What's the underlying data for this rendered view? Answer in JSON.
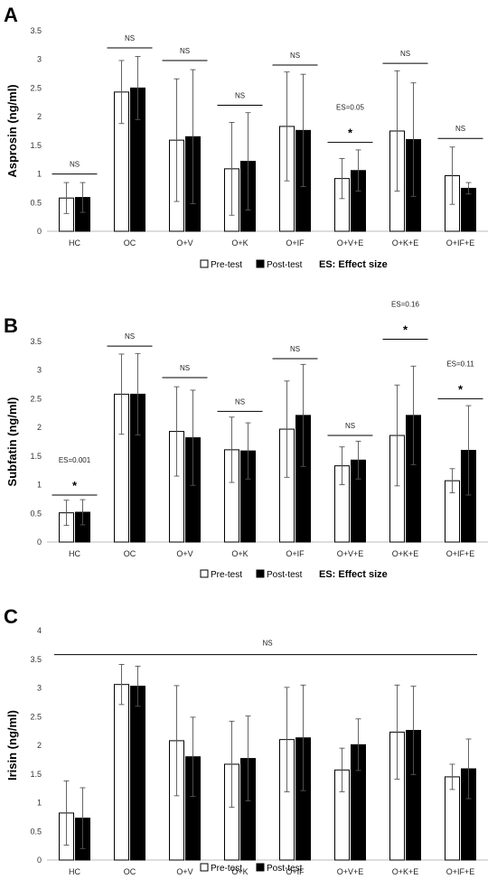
{
  "chart_data": [
    {
      "type": "bar",
      "panel": "A",
      "ylabel": "Asprosin (ng/ml)",
      "ylim": [
        0,
        3.5
      ],
      "yticks": [
        "0",
        "0.5",
        "1",
        "1.5",
        "2",
        "2.5",
        "3",
        "3.5"
      ],
      "categories": [
        "HC",
        "OC",
        "O+V",
        "O+K",
        "O+IF",
        "O+V+E",
        "O+K+E",
        "O+IF+E"
      ],
      "series": [
        {
          "name": "Pre-test",
          "color": "#ffffff",
          "values": [
            0.58,
            2.43,
            1.59,
            1.09,
            1.83,
            0.92,
            1.75,
            0.97
          ],
          "errors": [
            0.27,
            0.55,
            1.07,
            0.81,
            0.95,
            0.35,
            1.05,
            0.5
          ]
        },
        {
          "name": "Post-test",
          "color": "#000000",
          "values": [
            0.59,
            2.5,
            1.65,
            1.22,
            1.76,
            1.06,
            1.6,
            0.75
          ],
          "errors": [
            0.26,
            0.55,
            1.17,
            0.85,
            0.98,
            0.36,
            0.99,
            0.1
          ]
        }
      ],
      "significance": [
        {
          "label": "NS",
          "star": "",
          "es": "",
          "y": 1.0
        },
        {
          "label": "NS",
          "star": "",
          "es": "",
          "y": 3.2
        },
        {
          "label": "NS",
          "star": "",
          "es": "",
          "y": 2.98
        },
        {
          "label": "NS",
          "star": "",
          "es": "",
          "y": 2.2
        },
        {
          "label": "NS",
          "star": "",
          "es": "",
          "y": 2.9
        },
        {
          "label": "",
          "star": "*",
          "es": "ES=0.05",
          "y": 1.55
        },
        {
          "label": "NS",
          "star": "",
          "es": "",
          "y": 2.93
        },
        {
          "label": "NS",
          "star": "",
          "es": "",
          "y": 1.62
        }
      ],
      "legend": {
        "pre": "Pre-test",
        "post": "Post-test",
        "note": "ES: Effect size"
      }
    },
    {
      "type": "bar",
      "panel": "B",
      "ylabel": "Subfatin (ng/ml)",
      "ylim": [
        0,
        3.5
      ],
      "yticks": [
        "0",
        "0.5",
        "1",
        "1.5",
        "2",
        "2.5",
        "3",
        "3.5"
      ],
      "categories": [
        "HC",
        "OC",
        "O+V",
        "O+K",
        "O+IF",
        "O+V+E",
        "O+K+E",
        "O+IF+E"
      ],
      "series": [
        {
          "name": "Pre-test",
          "color": "#ffffff",
          "values": [
            0.51,
            2.58,
            1.93,
            1.61,
            1.97,
            1.33,
            1.86,
            1.07
          ],
          "errors": [
            0.22,
            0.7,
            0.78,
            0.57,
            0.84,
            0.33,
            0.88,
            0.21
          ]
        },
        {
          "name": "Post-test",
          "color": "#000000",
          "values": [
            0.52,
            2.58,
            1.82,
            1.59,
            2.21,
            1.43,
            2.21,
            1.6
          ],
          "errors": [
            0.22,
            0.71,
            0.83,
            0.49,
            0.89,
            0.33,
            0.86,
            0.78
          ]
        }
      ],
      "significance": [
        {
          "label": "",
          "star": "*",
          "es": "ES=0.001",
          "y": 0.82
        },
        {
          "label": "NS",
          "star": "",
          "es": "",
          "y": 3.42
        },
        {
          "label": "NS",
          "star": "",
          "es": "",
          "y": 2.87
        },
        {
          "label": "NS",
          "star": "",
          "es": "",
          "y": 2.28
        },
        {
          "label": "NS",
          "star": "",
          "es": "",
          "y": 3.2
        },
        {
          "label": "NS",
          "star": "",
          "es": "",
          "y": 1.86
        },
        {
          "label": "",
          "star": "*",
          "es": "ES=0.16",
          "y": 3.54
        },
        {
          "label": "",
          "star": "*",
          "es": "ES=0.11",
          "y": 2.5
        }
      ],
      "legend": {
        "pre": "Pre-test",
        "post": "Post-test",
        "note": "ES: Effect size"
      }
    },
    {
      "type": "bar",
      "panel": "C",
      "ylabel": "Irisin (ng/ml)",
      "ylim": [
        0,
        4
      ],
      "yticks": [
        "0",
        "0.5",
        "1",
        "1.5",
        "2",
        "2.5",
        "3",
        "3.5",
        "4"
      ],
      "categories": [
        "HC",
        "OC",
        "O+V",
        "O+K",
        "O+IF",
        "O+V+E",
        "O+K+E",
        "O+IF+E"
      ],
      "series": [
        {
          "name": "Pre-test",
          "color": "#ffffff",
          "values": [
            0.82,
            3.06,
            2.08,
            1.67,
            2.1,
            1.57,
            2.23,
            1.45
          ],
          "errors": [
            0.56,
            0.35,
            0.96,
            0.75,
            0.91,
            0.38,
            0.82,
            0.22
          ]
        },
        {
          "name": "Post-test",
          "color": "#000000",
          "values": [
            0.73,
            3.03,
            1.8,
            1.77,
            2.13,
            2.01,
            2.26,
            1.59
          ],
          "errors": [
            0.53,
            0.35,
            0.69,
            0.74,
            0.92,
            0.45,
            0.77,
            0.52
          ]
        }
      ],
      "overall": {
        "label": "NS",
        "y": 3.58
      },
      "legend": {
        "pre": "Pre-test",
        "post": "Post-test",
        "note": ""
      }
    }
  ]
}
